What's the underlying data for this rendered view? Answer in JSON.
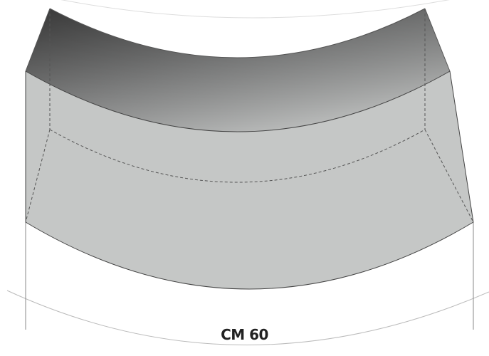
{
  "product": {
    "label": "CM 60"
  },
  "colors": {
    "background": "#ffffff",
    "top_face_dark": "#4a4a4a",
    "top_face_light": "#d4d6d5",
    "front_face": "#c5c7c6",
    "outline": "#444444",
    "hidden_edge": "#555555",
    "ground_line": "#bbbbbb",
    "label_text": "#222222"
  }
}
